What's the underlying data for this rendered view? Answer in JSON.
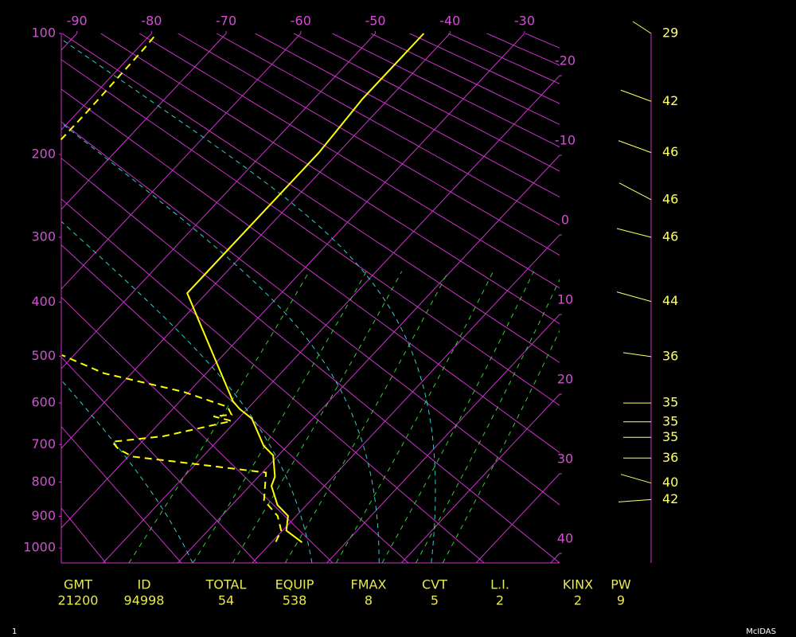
{
  "chart_data": {
    "type": "skewt",
    "ylim": [
      100,
      1050
    ],
    "yticks": [
      100,
      200,
      300,
      400,
      500,
      600,
      700,
      800,
      900,
      1000
    ],
    "xlim": [
      -92.1,
      -25.3
    ],
    "xticks": [
      -90,
      -80,
      -70,
      -60,
      -50,
      -40,
      -30
    ],
    "isotherm_ticks": [
      -20,
      -10,
      0,
      10,
      20,
      30,
      40
    ],
    "grid_color": "#cc33cc",
    "label_color": "#d050d0",
    "series": [
      {
        "color": "#ffff00",
        "dashed": false,
        "pressure": [
          982,
          944,
          899,
          866,
          811,
          785,
          728,
          703,
          636,
          614,
          596,
          385,
          198,
          148,
          100
        ],
        "values": [
          4.1,
          0.5,
          -1.1,
          -3.9,
          -7.1,
          -7.8,
          -10.7,
          -13.2,
          -18.2,
          -21.0,
          -22.9,
          -42.6,
          -42.6,
          -43.5,
          -43.5
        ]
      },
      {
        "color": "#ffff00",
        "dashed": true,
        "pressure": [
          980,
          944,
          899,
          852,
          774,
          746,
          731,
          711,
          693,
          679,
          642,
          631,
          627,
          609,
          575,
          535,
          498,
          null,
          185,
          159,
          110,
          100
        ],
        "values": [
          0.5,
          -0.2,
          -2.5,
          -6.3,
          -9.5,
          -22.3,
          -29.4,
          -32.3,
          -34.0,
          -27.8,
          -20.6,
          -23.6,
          -21.4,
          -22.9,
          -30.7,
          -43.7,
          -51.6,
          null,
          -78.8,
          -78.8,
          -79.1,
          -79.3
        ]
      }
    ],
    "winds": {
      "color": "#ffff66",
      "pressure": [
        100,
        150,
        198,
        251,
        300,
        399,
        501,
        600,
        644,
        682,
        735,
        803,
        850
      ],
      "speed": [
        29,
        42,
        46,
        46,
        46,
        44,
        36,
        35,
        35,
        35,
        36,
        40,
        42
      ]
    }
  },
  "table": {
    "color": "#e8e850",
    "headers": [
      "GMT",
      "ID",
      "TOTAL",
      "EQUIP",
      "FMAX",
      "CVT",
      "L.I.",
      "KINX",
      "PW"
    ],
    "values": [
      "21200",
      "94998",
      54,
      538,
      8,
      5,
      2,
      2,
      9
    ]
  },
  "footer": {
    "left": "1",
    "right": "McIDAS"
  }
}
